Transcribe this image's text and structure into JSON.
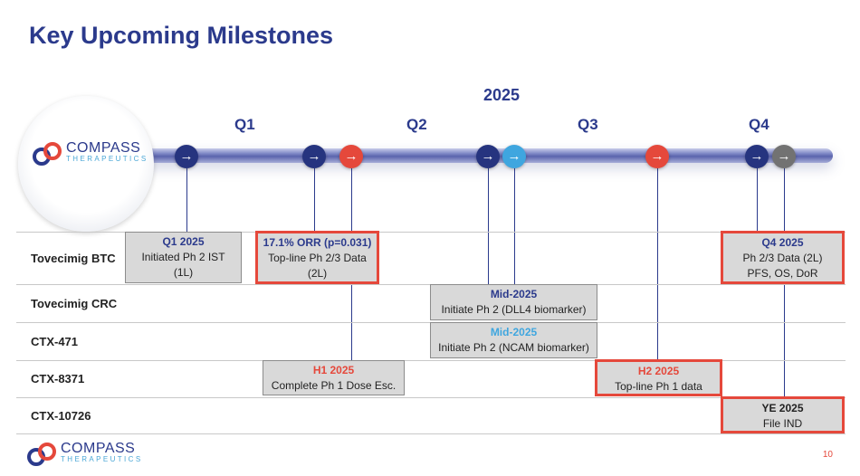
{
  "title": "Key Upcoming Milestones",
  "year": "2025",
  "quarters": [
    "Q1",
    "Q2",
    "Q3",
    "Q4"
  ],
  "logo": {
    "name": "COMPASS",
    "tagline": "THERAPEUTICS"
  },
  "arrow": "→",
  "colors": {
    "navy": "#2b3a8c",
    "red": "#e5483b",
    "light_blue": "#3fa6df",
    "gray": "#727272"
  },
  "rows": [
    "Tovecimig BTC",
    "Tovecimig CRC",
    "CTX-471",
    "CTX-8371",
    "CTX-10726"
  ],
  "milestones": [
    {
      "heading": "Q1 2025",
      "lines": [
        "Initiated Ph 2 IST",
        "(1L)"
      ]
    },
    {
      "heading": "17.1% ORR (p=0.031)",
      "lines": [
        "Top-line Ph 2/3 Data",
        "(2L)"
      ]
    },
    {
      "heading": "Q4 2025",
      "lines": [
        "Ph 2/3 Data (2L)",
        "PFS, OS, DoR"
      ]
    },
    {
      "heading": "Mid-2025",
      "lines": [
        "Initiate Ph 2 (DLL4 biomarker)"
      ]
    },
    {
      "heading": "Mid-2025",
      "lines": [
        "Initiate Ph 2 (NCAM biomarker)"
      ]
    },
    {
      "heading": "H1 2025",
      "lines": [
        "Complete Ph 1 Dose Esc."
      ]
    },
    {
      "heading": "H2 2025",
      "lines": [
        "Top-line Ph 1 data"
      ]
    },
    {
      "heading": "YE 2025",
      "lines": [
        "File IND"
      ]
    }
  ],
  "page_number": "10"
}
